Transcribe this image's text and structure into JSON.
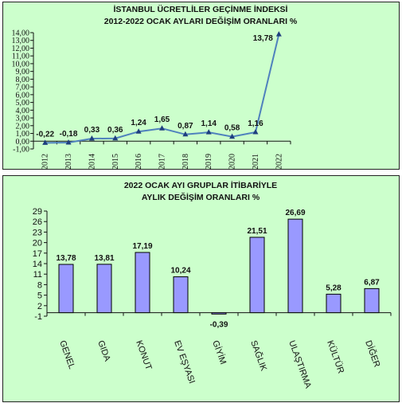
{
  "chart_data": [
    {
      "type": "line",
      "title": "İSTANBUL ÜCRETLİLER GEÇİNME İNDEKSİ",
      "subtitle": "2012-2022 OCAK AYLARI DEĞİŞİM ORANLARI %",
      "categories": [
        "2012",
        "2013",
        "2014",
        "2015",
        "2016",
        "2017",
        "2018",
        "2019",
        "2020",
        "2021",
        "2022"
      ],
      "values": [
        -0.22,
        -0.18,
        0.33,
        0.36,
        1.24,
        1.65,
        0.87,
        1.14,
        0.58,
        1.16,
        13.78
      ],
      "data_labels": [
        "-0,22",
        "-0,18",
        "0,33",
        "0,36",
        "1,24",
        "1,65",
        "0,87",
        "1,14",
        "0,58",
        "1,16",
        "13,78"
      ],
      "yticks": [
        "-1,00",
        "0,00",
        "1,00",
        "2,00",
        "3,00",
        "4,00",
        "5,00",
        "6,00",
        "7,00",
        "8,00",
        "9,00",
        "10,00",
        "11,00",
        "12,00",
        "13,00",
        "14,00"
      ],
      "ylim": [
        -1,
        14
      ],
      "line_color": "#4f81bd",
      "plot_bg": "#ccffcc",
      "grid": false
    },
    {
      "type": "bar",
      "title": "2022 OCAK  AYI  GRUPLAR İTİBARİYLE",
      "subtitle": "AYLIK DEĞİŞİM  ORANLARI  %",
      "categories": [
        "GENEL",
        "GIDA",
        "KONUT",
        "EV EŞYASI",
        "GİYİM",
        "SAĞLIK",
        "ULAŞTIRMA",
        "KÜLTÜR",
        "DİĞER"
      ],
      "values": [
        13.78,
        13.81,
        17.19,
        10.24,
        -0.39,
        21.51,
        26.69,
        5.28,
        6.87
      ],
      "data_labels": [
        "13,78",
        "13,81",
        "17,19",
        "10,24",
        "-0,39",
        "21,51",
        "26,69",
        "5,28",
        "6,87"
      ],
      "yticks": [
        "-1",
        "2",
        "5",
        "8",
        "11",
        "14",
        "17",
        "20",
        "23",
        "26",
        "29"
      ],
      "ylim": [
        -1,
        29
      ],
      "bar_color": "#9999ff",
      "plot_bg": "#ccffcc",
      "grid": false
    }
  ]
}
